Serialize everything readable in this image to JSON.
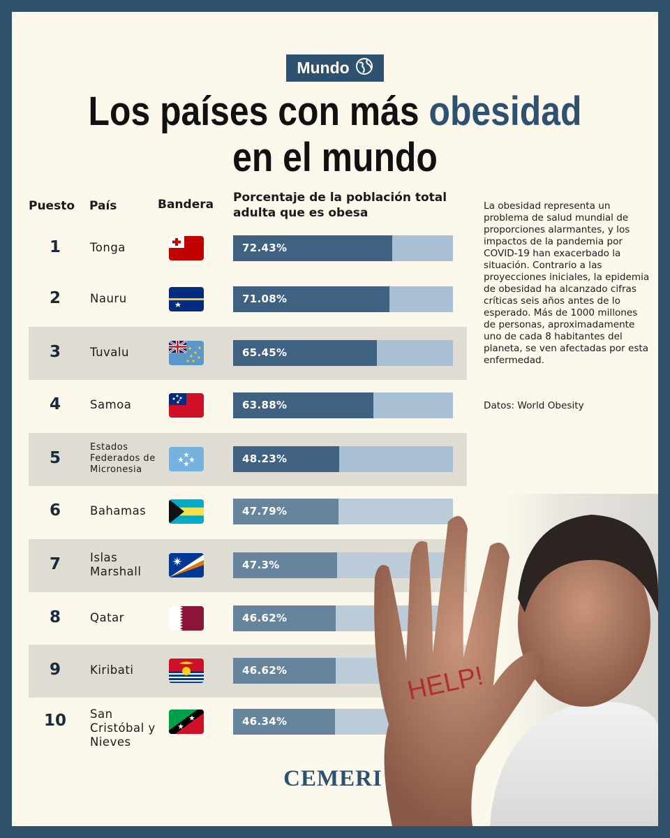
{
  "tag": {
    "label": "Mundo",
    "icon": "globe-icon"
  },
  "title": {
    "part1": "Los países con más ",
    "highlight": "obesidad",
    "part2": " en el mundo"
  },
  "headers": {
    "rank": "Puesto",
    "country": "País",
    "flag": "Bandera",
    "value": "Porcentaje de la población total adulta que es obesa"
  },
  "description": "La obesidad representa un problema de salud mundial de proporciones alarmantes, y los impactos de la pandemia por COVID-19 han exacerbado la situación. Contrario a las proyecciones iniciales, la epidemia de obesidad ha alcanzado cifras críticas seis años antes de lo esperado. Más de 1000 millones de personas, aproximadamente uno de cada 8 habitantes del planeta, se ven afectadas por esta enfermedad.",
  "source": "Datos: World Obesity",
  "logo": "CEMERI",
  "photo_text": "HELP!",
  "colors": {
    "dark_bar": "#3f6282",
    "light_bar": "#a9bfd3",
    "muted_bar": "#67849d",
    "muted_track": "#bccbd8",
    "band": "#dedcd3",
    "accent": "#2f5170"
  },
  "chart_data": {
    "type": "bar",
    "orientation": "horizontal",
    "xlim": [
      0,
      100
    ],
    "ranks": [
      "1",
      "2",
      "3",
      "4",
      "5",
      "6",
      "7",
      "8",
      "9",
      "10"
    ],
    "categories": [
      "Tonga",
      "Nauru",
      "Tuvalu",
      "Samoa",
      "Estados Federados de Micronesia",
      "Bahamas",
      "Islas Marshall",
      "Qatar",
      "Kiribati",
      "San Cristóbal y Nieves"
    ],
    "values": [
      72.43,
      71.08,
      65.45,
      63.88,
      48.23,
      47.79,
      47.3,
      46.62,
      46.62,
      46.34
    ],
    "labels": [
      "72.43%",
      "71.08%",
      "65.45%",
      "63.88%",
      "48.23%",
      "47.79%",
      "47.3%",
      "46.62%",
      "46.62%",
      "46.34%"
    ],
    "flags": [
      "tonga-flag-icon",
      "nauru-flag-icon",
      "tuvalu-flag-icon",
      "samoa-flag-icon",
      "micronesia-flag-icon",
      "bahamas-flag-icon",
      "marshall-islands-flag-icon",
      "qatar-flag-icon",
      "kiribati-flag-icon",
      "saint-kitts-nevis-flag-icon"
    ]
  }
}
